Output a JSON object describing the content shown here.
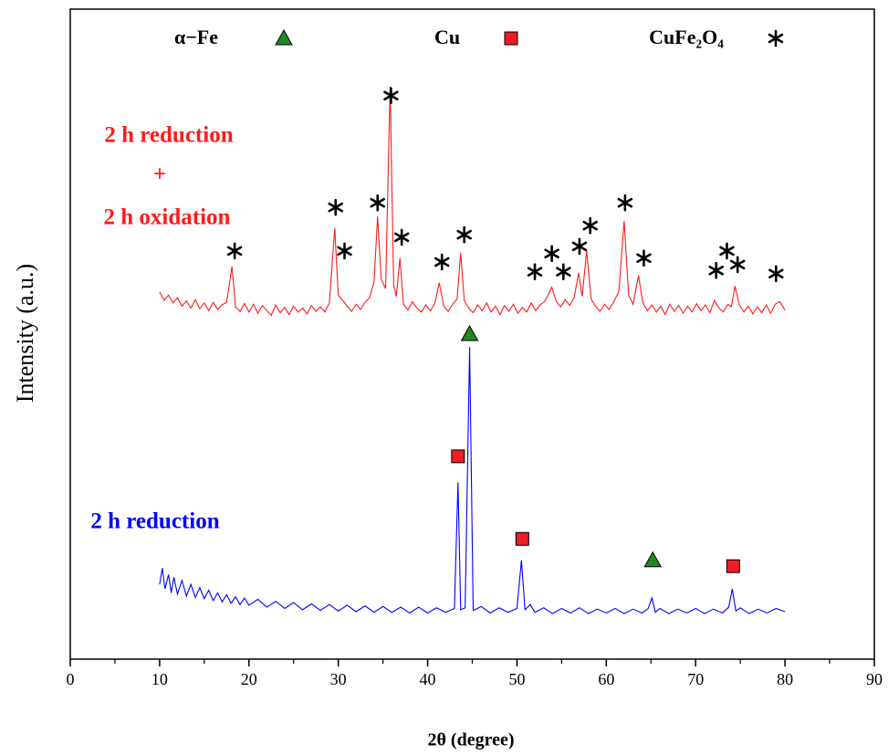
{
  "chart_data": {
    "type": "line",
    "xlabel": "2θ (degree)",
    "ylabel": "Intensity (a.u.)",
    "xlim": [
      0,
      90
    ],
    "xticks": [
      0,
      10,
      20,
      30,
      40,
      50,
      60,
      70,
      80,
      90
    ],
    "xminorticks": [
      5,
      15,
      25,
      35,
      45,
      55,
      65,
      75,
      85
    ],
    "ylim": [
      0,
      100
    ],
    "series": [
      {
        "color": "#ff1a1a",
        "label_lines": [
          "2 h reduction",
          "+",
          "2 h oxidation"
        ],
        "x": [
          10,
          10.5,
          11,
          11.5,
          12,
          12.5,
          13,
          13.5,
          14,
          14.5,
          15,
          15.5,
          16,
          16.5,
          17,
          17.5,
          18.1,
          18.5,
          19,
          19.5,
          20,
          20.5,
          21,
          21.5,
          22,
          22.5,
          23,
          23.5,
          24,
          24.5,
          25,
          25.5,
          26,
          26.5,
          27,
          27.5,
          28,
          28.5,
          29,
          29.6,
          30,
          30.5,
          31,
          31.5,
          32,
          32.5,
          33,
          33.5,
          34,
          34.4,
          34.8,
          35.3,
          35.8,
          36.2,
          36.5,
          36.9,
          37.3,
          37.8,
          38.3,
          38.8,
          39.3,
          39.8,
          40.3,
          40.8,
          41.3,
          41.8,
          42.3,
          42.8,
          43.3,
          43.7,
          44.1,
          44.6,
          45.1,
          45.6,
          46.1,
          46.6,
          47.1,
          47.6,
          48.1,
          48.6,
          49.1,
          49.6,
          50.1,
          50.6,
          51.1,
          51.6,
          52.1,
          52.6,
          53.1,
          53.9,
          54.4,
          54.9,
          55.4,
          55.9,
          56.4,
          56.9,
          57.3,
          57.8,
          58.3,
          58.8,
          59.3,
          59.8,
          60.3,
          60.8,
          61.4,
          62.0,
          62.5,
          63.0,
          63.6,
          64.1,
          64.6,
          65.1,
          65.6,
          66.1,
          66.6,
          67.1,
          67.6,
          68.1,
          68.6,
          69.1,
          69.6,
          70.1,
          70.6,
          71.1,
          71.6,
          72.1,
          72.6,
          73.1,
          73.6,
          74.0,
          74.4,
          74.9,
          75.4,
          75.9,
          76.4,
          76.9,
          77.4,
          77.9,
          78.4,
          78.9,
          79.4,
          80
        ],
        "values": [
          56.5,
          55.2,
          56.0,
          54.8,
          55.6,
          54.3,
          55.1,
          54.0,
          55.3,
          53.9,
          54.8,
          53.6,
          54.9,
          53.8,
          54.5,
          54.9,
          60.4,
          54.2,
          53.5,
          54.7,
          53.4,
          54.6,
          53.2,
          54.4,
          53.6,
          52.9,
          54.5,
          53.3,
          54.1,
          53.0,
          54.3,
          53.4,
          54.0,
          53.1,
          54.4,
          53.5,
          54.2,
          53.4,
          54.8,
          66.3,
          56.0,
          55.2,
          54.3,
          53.5,
          54.6,
          53.8,
          54.9,
          55.6,
          58.0,
          68.1,
          58.5,
          57.0,
          88.1,
          57.5,
          55.8,
          61.7,
          54.6,
          53.7,
          55.0,
          54.0,
          53.4,
          54.5,
          53.6,
          54.7,
          57.9,
          54.3,
          53.5,
          54.6,
          55.4,
          62.5,
          55.2,
          54.0,
          53.3,
          54.5,
          53.6,
          54.8,
          53.4,
          54.3,
          53.0,
          54.4,
          53.5,
          54.6,
          53.2,
          54.1,
          53.4,
          54.8,
          53.6,
          54.5,
          55.0,
          57.2,
          55.0,
          54.2,
          55.3,
          54.4,
          55.6,
          59.4,
          55.8,
          62.8,
          55.4,
          54.3,
          53.5,
          54.6,
          53.8,
          54.9,
          56.5,
          67.4,
          56.0,
          54.6,
          59.0,
          54.8,
          53.6,
          54.5,
          53.4,
          54.3,
          53.0,
          54.6,
          53.5,
          54.4,
          53.2,
          54.3,
          53.4,
          54.7,
          53.6,
          54.5,
          53.3,
          55.2,
          54.0,
          53.4,
          54.6,
          54.2,
          57.4,
          54.5,
          53.4,
          54.3,
          53.1,
          54.2,
          53.3,
          54.5,
          53.2,
          54.6,
          55.0,
          53.7
        ]
      },
      {
        "color": "#0000ff",
        "label_lines": [
          "2 h reduction"
        ],
        "x": [
          10,
          10.3,
          10.6,
          11,
          11.3,
          11.6,
          12,
          12.5,
          13,
          13.5,
          14,
          14.5,
          15,
          15.5,
          16,
          16.5,
          17,
          17.5,
          18,
          18.5,
          19,
          19.5,
          20,
          21,
          22,
          23,
          24,
          25,
          26,
          27,
          28,
          29,
          30,
          31,
          32,
          33,
          34,
          35,
          36,
          37,
          38,
          39,
          40,
          41,
          42,
          43,
          43.4,
          43.7,
          44.2,
          44.7,
          45.1,
          46,
          47,
          48,
          49,
          50,
          50.5,
          50.9,
          51.5,
          52,
          53,
          54,
          55,
          56,
          57,
          58,
          59,
          60,
          61,
          62,
          63,
          64,
          64.7,
          65.1,
          65.5,
          66,
          67,
          68,
          69,
          70,
          71,
          72,
          73,
          73.7,
          74.1,
          74.5,
          75,
          76,
          77,
          78,
          79,
          80
        ],
        "values": [
          11.5,
          14.0,
          10.8,
          13.0,
          10.2,
          12.6,
          10.0,
          12.1,
          9.7,
          11.5,
          9.5,
          11.0,
          9.3,
          10.6,
          9.0,
          10.2,
          8.8,
          9.9,
          8.6,
          9.6,
          8.4,
          9.4,
          8.3,
          9.2,
          8.0,
          8.9,
          7.8,
          8.7,
          7.6,
          8.5,
          7.5,
          8.4,
          7.4,
          8.3,
          7.3,
          8.2,
          7.2,
          8.1,
          7.2,
          8.0,
          7.1,
          8.0,
          7.1,
          7.9,
          7.2,
          7.8,
          27.2,
          7.6,
          7.9,
          48.0,
          7.5,
          8.1,
          7.1,
          7.9,
          7.2,
          7.8,
          15.2,
          7.6,
          8.4,
          7.2,
          7.9,
          7.0,
          7.8,
          7.1,
          7.9,
          7.0,
          7.7,
          7.1,
          7.8,
          7.0,
          7.7,
          7.1,
          7.8,
          9.4,
          7.2,
          7.8,
          7.0,
          7.7,
          7.1,
          7.8,
          7.0,
          7.7,
          7.1,
          8.0,
          10.8,
          7.4,
          7.9,
          7.0,
          7.7,
          7.1,
          7.8,
          7.3
        ]
      }
    ],
    "phases": [
      {
        "name": "α−Fe",
        "symbol": "triangle",
        "color": "#1f8a1f",
        "x": [
          44.7,
          65.2
        ],
        "y": [
          50.0,
          15.2
        ]
      },
      {
        "name": "Cu",
        "symbol": "square",
        "color": "#ee1c24",
        "x": [
          43.4,
          50.6,
          74.2
        ],
        "y": [
          31.2,
          18.5,
          14.3
        ]
      },
      {
        "name": "CuFe₂O₄",
        "symbol": "asterisk",
        "color": "#000000",
        "x": [
          18.4,
          29.7,
          30.7,
          34.4,
          35.9,
          37.1,
          41.6,
          44.1,
          52.0,
          53.9,
          55.2,
          57.0,
          58.2,
          62.1,
          64.2,
          72.3,
          73.5,
          74.7,
          79.0
        ],
        "y": [
          62.8,
          69.5,
          62.8,
          70.2,
          86.7,
          64.9,
          61.1,
          65.3,
          59.6,
          62.4,
          59.6,
          63.5,
          66.7,
          70.2,
          61.7,
          59.8,
          62.8,
          60.7,
          59.3
        ]
      }
    ]
  }
}
